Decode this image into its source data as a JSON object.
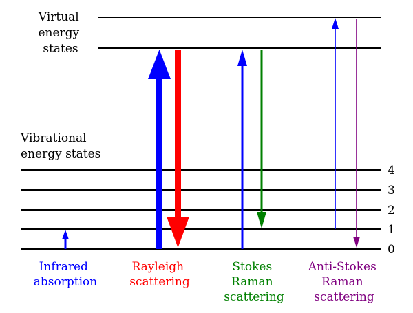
{
  "virtual_label": [
    "Virtual",
    "energy",
    "states"
  ],
  "vibrational_label": [
    "Vibrational",
    "energy states"
  ],
  "levels": [
    "4",
    "3",
    "2",
    "1",
    "0"
  ],
  "processes": [
    {
      "key": "infrared",
      "lines": [
        "Infrared",
        "absorption"
      ],
      "color": "#0000ff"
    },
    {
      "key": "rayleigh",
      "lines": [
        "Rayleigh",
        "scattering"
      ],
      "color": "#ff0000"
    },
    {
      "key": "stokes",
      "lines": [
        "Stokes",
        "Raman",
        "scattering"
      ],
      "color": "#008000"
    },
    {
      "key": "anti-stokes",
      "lines": [
        "Anti-Stokes",
        "Raman",
        "scattering"
      ],
      "color": "#800080"
    }
  ],
  "colors": {
    "line": "#000000",
    "blue": "#0000ff",
    "red": "#ff0000",
    "green": "#008000",
    "purple": "#800080"
  }
}
